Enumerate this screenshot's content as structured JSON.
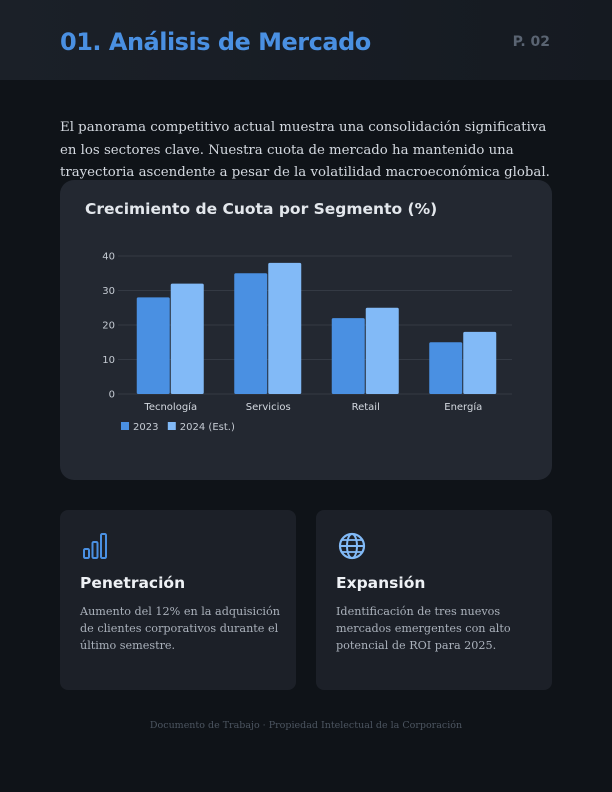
{
  "header": {
    "title": "01. Análisis de Mercado",
    "page_number": "P. 02"
  },
  "intro_text": "El panorama competitivo actual muestra una consolidación significativa en los sectores clave. Nuestra cuota de mercado ha mantenido una trayectoria ascendente a pesar de la volatilidad macroeconómica global.",
  "colors": {
    "accent": "#4a90e2",
    "series_2023": "#4a90e2",
    "series_2024": "#82baf7"
  },
  "chart_data": {
    "type": "bar",
    "title": "Crecimiento de Cuota por Segmento (%)",
    "categories": [
      "Tecnología",
      "Servicios",
      "Retail",
      "Energía"
    ],
    "series": [
      {
        "name": "2023",
        "values": [
          28,
          35,
          22,
          15
        ]
      },
      {
        "name": "2024 (Est.)",
        "values": [
          32,
          38,
          25,
          18
        ]
      }
    ],
    "ylim": [
      0,
      40
    ],
    "yticks": [
      0,
      10,
      20,
      30,
      40
    ],
    "grid": true,
    "legend_position": "bottom-left"
  },
  "cards": [
    {
      "icon": "bar-chart-icon",
      "title": "Penetración",
      "text": "Aumento del 12% en la adquisición de clientes corporativos durante el último semestre."
    },
    {
      "icon": "globe-icon",
      "title": "Expansión",
      "text": "Identificación de tres nuevos mercados emergentes con alto potencial de ROI para 2025."
    }
  ],
  "footer": "Documento de Trabajo · Propiedad Intelectual de la Corporación"
}
